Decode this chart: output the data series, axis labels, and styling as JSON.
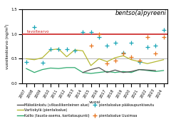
{
  "title": "bentso(a)pyreeni",
  "xlabel": "vuosi",
  "ylabel": "vuosikeskiarvo (ng/m³)",
  "ylim": [
    0.0,
    1.5
  ],
  "yticks": [
    0.0,
    0.5,
    1.0,
    1.5
  ],
  "tavoitearvo": 1.0,
  "tavoitearvo_label": "tavoitearvo",
  "years_makolankatu": [
    2014,
    2015,
    2016,
    2017,
    2018,
    2019,
    2020,
    2021,
    2022,
    2023
  ],
  "values_makolankatu": [
    0.22,
    0.28,
    0.32,
    0.22,
    0.27,
    0.22,
    0.24,
    0.28,
    0.27,
    0.26
  ],
  "years_kallio": [
    2007,
    2008,
    2009,
    2010,
    2011,
    2012,
    2013,
    2014,
    2015,
    2016,
    2017,
    2018,
    2019,
    2020,
    2021,
    2022,
    2023,
    2024
  ],
  "values_kallio": [
    0.3,
    0.22,
    0.28,
    0.31,
    0.3,
    0.32,
    0.32,
    0.22,
    0.2,
    0.22,
    0.24,
    0.22,
    0.24,
    0.22,
    0.28,
    0.26,
    0.24,
    0.26
  ],
  "years_vartiokyla": [
    2007,
    2008,
    2009,
    2010,
    2011,
    2012,
    2013,
    2014,
    2015,
    2016,
    2017,
    2018,
    2019,
    2020,
    2021,
    2022,
    2023,
    2024
  ],
  "values_vartiokyla": [
    0.5,
    0.48,
    0.52,
    0.68,
    0.7,
    0.54,
    0.68,
    0.66,
    0.36,
    0.5,
    0.44,
    0.52,
    0.56,
    0.48,
    0.44,
    0.4,
    0.44,
    0.48
  ],
  "years_pientalo_pks": [
    2007,
    2008,
    2009,
    2010,
    2011,
    2012,
    2013,
    2014,
    2015,
    2016,
    2017,
    2018,
    2019,
    2020,
    2021,
    2022,
    2023,
    2024
  ],
  "values_pientalo_pks": [
    0.44,
    1.14,
    0.42,
    0.7,
    0.7,
    0.7,
    0.66,
    1.04,
    1.04,
    0.94,
    0.76,
    0.82,
    0.62,
    0.82,
    0.44,
    0.74,
    0.76,
    1.08
  ],
  "years_pientalo_uusimaa": [
    2015,
    2016,
    2017,
    2018,
    2019,
    2020,
    2021,
    2022,
    2023,
    2024
  ],
  "values_pientalo_uusimaa": [
    0.76,
    1.0,
    0.4,
    0.46,
    0.6,
    0.54,
    0.46,
    0.94,
    0.6,
    0.94
  ],
  "color_makolankatu": "#555555",
  "color_kallio": "#2eaa6e",
  "color_vartiokyla": "#b5b832",
  "color_pientalo_pks": "#1aa6b7",
  "color_pientalo_uusimaa": "#e87722",
  "color_tavoitearvo": "#cc2222",
  "color_halfline": "#aaaaaa",
  "label_makolankatu": "Mäkelänkatu (vilkasliikenteinen alue)",
  "label_kallio": "Kallio (tausta-asema, kantakaupunki)",
  "label_vartiokyla": "Vartiokylä (pientaloalue)",
  "label_pientalo_pks": "pientaloalue pääkaupunkiseutu",
  "label_pientalo_uusimaa": "pientaloalue Uusimaa"
}
